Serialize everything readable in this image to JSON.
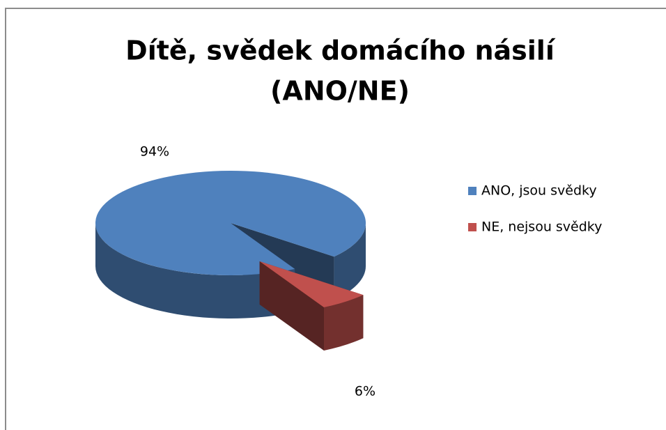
{
  "chart_data": {
    "type": "pie",
    "title": [
      "Dítě, svědek domácího násilí",
      "(ANO/NE)"
    ],
    "categories": [
      "ANO, jsou svědky",
      "NE, nejsou svědky"
    ],
    "values": [
      94,
      6
    ],
    "value_labels": [
      "94%",
      "6%"
    ],
    "colors": [
      "#4f81bd",
      "#c0504d"
    ],
    "legend": "right"
  }
}
